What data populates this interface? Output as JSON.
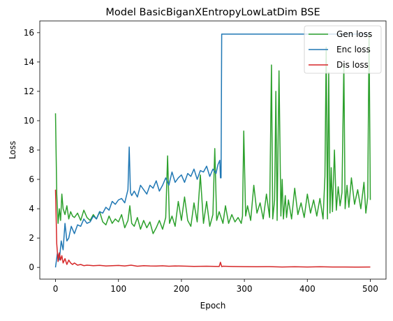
{
  "chart_data": {
    "type": "line",
    "title": "Model BasicBiganXEntropyLowLatDim BSE",
    "xlabel": "Epoch",
    "ylabel": "Loss",
    "xlim": [
      -25,
      525
    ],
    "ylim": [
      -0.8,
      16.8
    ],
    "xticks": [
      0,
      100,
      200,
      300,
      400,
      500
    ],
    "yticks": [
      0,
      2,
      4,
      6,
      8,
      10,
      12,
      14,
      16
    ],
    "legend_position": "top-right",
    "series": [
      {
        "name": "Gen loss",
        "color": "#2ca02c",
        "x": [
          0,
          2,
          4,
          6,
          8,
          10,
          12,
          15,
          18,
          21,
          24,
          27,
          30,
          35,
          40,
          45,
          50,
          55,
          60,
          65,
          70,
          75,
          80,
          85,
          90,
          95,
          100,
          105,
          110,
          115,
          118,
          121,
          125,
          130,
          135,
          140,
          145,
          150,
          155,
          160,
          165,
          170,
          175,
          178,
          181,
          185,
          190,
          195,
          200,
          205,
          210,
          215,
          220,
          225,
          230,
          235,
          240,
          245,
          250,
          253,
          256,
          260,
          263,
          266,
          270,
          275,
          280,
          285,
          290,
          295,
          297,
          299,
          302,
          305,
          310,
          315,
          320,
          325,
          330,
          335,
          340,
          343,
          345,
          348,
          350,
          352,
          355,
          358,
          360,
          362,
          365,
          367,
          370,
          375,
          380,
          385,
          390,
          395,
          400,
          405,
          410,
          415,
          420,
          425,
          428,
          430,
          432,
          434,
          436,
          438,
          440,
          443,
          446,
          449,
          452,
          455,
          458,
          460,
          463,
          466,
          470,
          475,
          480,
          485,
          490,
          493,
          496,
          498,
          500
        ],
        "y": [
          10.5,
          5.0,
          3.0,
          4.0,
          3.2,
          5.0,
          4.0,
          3.6,
          4.2,
          3.3,
          3.8,
          3.5,
          3.4,
          3.7,
          3.2,
          3.9,
          3.4,
          3.2,
          3.6,
          3.3,
          3.8,
          3.1,
          2.9,
          3.5,
          3.0,
          3.3,
          3.1,
          3.6,
          2.7,
          3.2,
          4.2,
          3.0,
          2.8,
          3.4,
          2.6,
          3.2,
          2.7,
          3.1,
          2.3,
          2.7,
          3.2,
          2.6,
          3.4,
          7.6,
          3.0,
          3.5,
          2.8,
          4.5,
          3.2,
          4.8,
          3.2,
          2.8,
          4.4,
          3.1,
          6.3,
          3.0,
          4.5,
          2.8,
          3.6,
          8.1,
          3.2,
          3.8,
          3.4,
          3.0,
          4.2,
          3.0,
          3.6,
          3.1,
          3.4,
          3.0,
          3.5,
          9.3,
          3.5,
          4.2,
          3.2,
          5.6,
          3.7,
          4.4,
          3.3,
          5.0,
          3.4,
          13.8,
          3.3,
          4.6,
          12.0,
          3.2,
          13.4,
          3.5,
          6.0,
          3.3,
          4.9,
          3.4,
          4.6,
          3.3,
          5.4,
          3.6,
          4.4,
          3.4,
          5.0,
          3.7,
          4.6,
          3.5,
          4.7,
          3.3,
          6.2,
          15.0,
          3.3,
          13.3,
          3.7,
          6.8,
          3.8,
          8.0,
          3.9,
          5.5,
          4.2,
          5.1,
          13.9,
          4.0,
          5.6,
          4.1,
          6.1,
          4.3,
          5.3,
          4.0,
          5.8,
          3.7,
          4.8,
          16.0,
          4.6
        ]
      },
      {
        "name": "Enc loss",
        "color": "#1f77b4",
        "x": [
          0,
          3,
          6,
          9,
          12,
          15,
          18,
          21,
          25,
          30,
          35,
          40,
          45,
          50,
          55,
          60,
          65,
          70,
          75,
          80,
          85,
          90,
          95,
          100,
          105,
          110,
          115,
          117,
          119,
          121,
          125,
          130,
          135,
          140,
          145,
          150,
          155,
          160,
          165,
          170,
          175,
          180,
          185,
          190,
          195,
          200,
          205,
          210,
          215,
          220,
          225,
          230,
          235,
          240,
          245,
          250,
          255,
          258,
          261,
          262,
          263,
          264,
          500
        ],
        "y": [
          0.0,
          1.0,
          0.5,
          1.8,
          1.2,
          3.0,
          1.8,
          2.0,
          2.8,
          2.3,
          2.9,
          2.8,
          3.3,
          3.0,
          3.1,
          3.5,
          3.3,
          3.8,
          3.7,
          4.1,
          3.9,
          4.5,
          4.3,
          4.6,
          4.7,
          4.4,
          5.3,
          8.2,
          5.1,
          4.9,
          5.2,
          4.8,
          5.6,
          5.3,
          5.0,
          5.6,
          5.4,
          5.9,
          5.2,
          5.6,
          6.1,
          5.6,
          6.5,
          5.8,
          6.1,
          6.3,
          5.8,
          6.4,
          6.2,
          6.7,
          6.0,
          6.6,
          6.5,
          6.9,
          6.2,
          6.7,
          6.4,
          7.0,
          7.3,
          6.1,
          6.1,
          15.9,
          15.9
        ]
      },
      {
        "name": "Dis loss",
        "color": "#d62728",
        "x": [
          0,
          2,
          4,
          6,
          8,
          10,
          12,
          15,
          18,
          21,
          24,
          27,
          30,
          35,
          40,
          45,
          50,
          60,
          70,
          80,
          90,
          100,
          110,
          120,
          130,
          140,
          150,
          160,
          170,
          180,
          190,
          200,
          220,
          240,
          260,
          262,
          264,
          266,
          280,
          300,
          320,
          340,
          360,
          380,
          400,
          420,
          440,
          460,
          480,
          500
        ],
        "y": [
          5.3,
          1.6,
          0.4,
          1.0,
          0.5,
          0.8,
          0.3,
          0.6,
          0.2,
          0.5,
          0.3,
          0.2,
          0.3,
          0.15,
          0.2,
          0.12,
          0.15,
          0.12,
          0.14,
          0.1,
          0.12,
          0.13,
          0.1,
          0.15,
          0.08,
          0.12,
          0.1,
          0.09,
          0.11,
          0.08,
          0.1,
          0.09,
          0.07,
          0.08,
          0.06,
          0.35,
          0.05,
          0.08,
          0.06,
          0.05,
          0.04,
          0.05,
          0.03,
          0.04,
          0.03,
          0.04,
          0.03,
          0.03,
          0.02,
          0.03
        ]
      }
    ]
  }
}
